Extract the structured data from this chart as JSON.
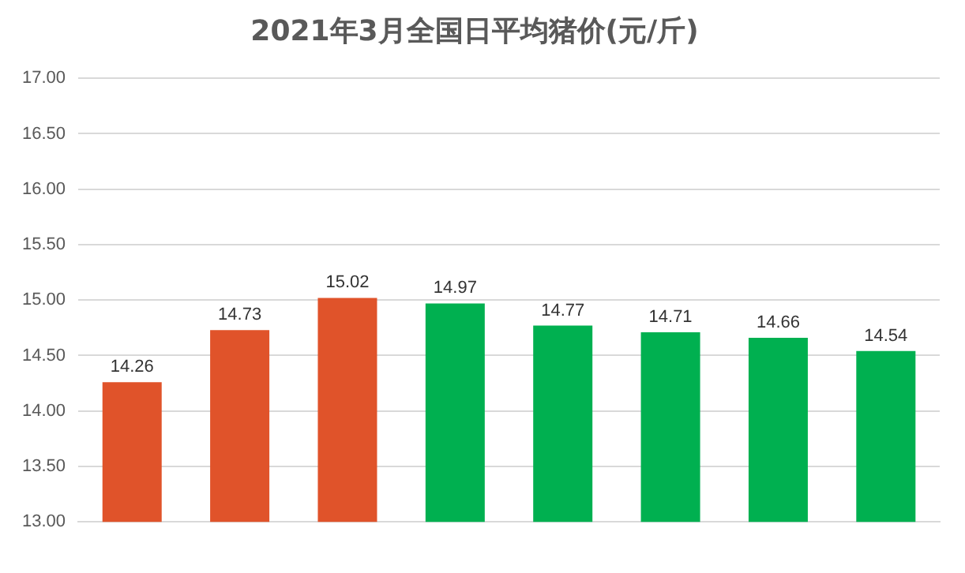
{
  "chart_data": {
    "type": "bar",
    "title": "2021年3月全国日平均猪价(元/斤)",
    "categories": [
      null,
      null,
      null,
      null,
      null,
      null,
      null,
      null
    ],
    "values": [
      14.26,
      14.73,
      15.02,
      14.97,
      14.77,
      14.71,
      14.66,
      14.54
    ],
    "colors": [
      "#e0532a",
      "#e0532a",
      "#e0532a",
      "#00b050",
      "#00b050",
      "#00b050",
      "#00b050",
      "#00b050"
    ],
    "ylim": [
      13,
      17
    ],
    "yticks": [
      {
        "value": 13,
        "label": "13.00"
      },
      {
        "value": 13.5,
        "label": "13.50"
      },
      {
        "value": 14,
        "label": "14.00"
      },
      {
        "value": 14.5,
        "label": "14.50"
      },
      {
        "value": 15,
        "label": "15.00"
      },
      {
        "value": 15.5,
        "label": "15.50"
      },
      {
        "value": 16,
        "label": "16.00"
      },
      {
        "value": 16.5,
        "label": "16.50"
      },
      {
        "value": 17,
        "label": "17.00"
      }
    ],
    "grid": "y",
    "data_labels": true,
    "legend": false
  }
}
